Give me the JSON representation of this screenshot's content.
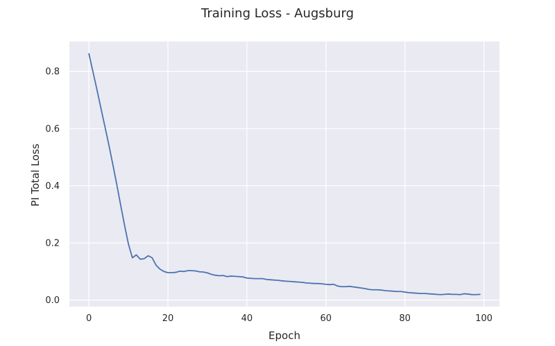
{
  "chart_data": {
    "type": "line",
    "title": "Training Loss - Augsburg",
    "xlabel": "Epoch",
    "ylabel": "PI Total Loss",
    "xlim": [
      -4.95,
      103.95
    ],
    "ylim": [
      -0.0227,
      0.9047
    ],
    "xticks": [
      0,
      20,
      40,
      60,
      80,
      100
    ],
    "yticks": [
      0.0,
      0.2,
      0.4,
      0.6,
      0.8
    ],
    "xtick_labels": [
      "0",
      "20",
      "40",
      "60",
      "80",
      "100"
    ],
    "ytick_labels": [
      "0.0",
      "0.2",
      "0.4",
      "0.6",
      "0.8"
    ],
    "grid": true,
    "colors": {
      "plot_background": "#eaeaf2",
      "grid": "#ffffff",
      "series": "#4c72b0"
    },
    "series": [
      {
        "x": [
          0,
          1,
          2,
          3,
          4,
          5,
          6,
          7,
          8,
          9,
          10,
          11,
          12,
          13,
          14,
          15,
          16,
          17,
          18,
          19,
          20,
          21,
          22,
          23,
          24,
          25,
          26,
          27,
          28,
          29,
          30,
          31,
          32,
          33,
          34,
          35,
          36,
          37,
          38,
          39,
          40,
          41,
          42,
          43,
          44,
          45,
          46,
          47,
          48,
          49,
          50,
          51,
          52,
          53,
          54,
          55,
          56,
          57,
          58,
          59,
          60,
          61,
          62,
          63,
          64,
          65,
          66,
          67,
          68,
          69,
          70,
          71,
          72,
          73,
          74,
          75,
          76,
          77,
          78,
          79,
          80,
          81,
          82,
          83,
          84,
          85,
          86,
          87,
          88,
          89,
          90,
          91,
          92,
          93,
          94,
          95,
          96,
          97,
          98,
          99
        ],
        "values": [
          0.862,
          0.8,
          0.738,
          0.674,
          0.61,
          0.546,
          0.478,
          0.408,
          0.335,
          0.263,
          0.196,
          0.148,
          0.158,
          0.143,
          0.145,
          0.155,
          0.148,
          0.122,
          0.108,
          0.1,
          0.096,
          0.096,
          0.097,
          0.101,
          0.1,
          0.103,
          0.103,
          0.102,
          0.099,
          0.098,
          0.095,
          0.09,
          0.087,
          0.085,
          0.086,
          0.082,
          0.084,
          0.083,
          0.082,
          0.081,
          0.077,
          0.076,
          0.075,
          0.075,
          0.075,
          0.072,
          0.071,
          0.07,
          0.069,
          0.067,
          0.066,
          0.065,
          0.064,
          0.063,
          0.062,
          0.06,
          0.059,
          0.058,
          0.058,
          0.057,
          0.055,
          0.054,
          0.055,
          0.049,
          0.047,
          0.047,
          0.048,
          0.046,
          0.044,
          0.042,
          0.04,
          0.037,
          0.036,
          0.036,
          0.035,
          0.033,
          0.032,
          0.031,
          0.03,
          0.03,
          0.028,
          0.026,
          0.025,
          0.024,
          0.023,
          0.023,
          0.022,
          0.021,
          0.02,
          0.019,
          0.02,
          0.021,
          0.02,
          0.02,
          0.019,
          0.022,
          0.021,
          0.019,
          0.019,
          0.02
        ]
      }
    ]
  }
}
